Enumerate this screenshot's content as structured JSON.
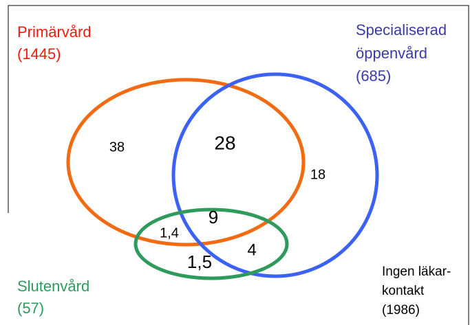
{
  "sets": [
    {
      "name": "Primärvård",
      "count": "(1445)"
    },
    {
      "name_lines": [
        "Specialiserad",
        "öppenvård"
      ],
      "count": "(685)"
    },
    {
      "name": "Slutenvård",
      "count": "(57)"
    }
  ],
  "outside": {
    "lines": [
      "Ingen läkar-",
      "kontakt"
    ],
    "count": "(1986)"
  },
  "regions": {
    "primary_only": "38",
    "primary_specialist": "28",
    "specialist_only": "18",
    "all_three": "9",
    "primary_inpatient": "1,4",
    "specialist_inpatient": "4",
    "inpatient_only": "1,5"
  }
}
